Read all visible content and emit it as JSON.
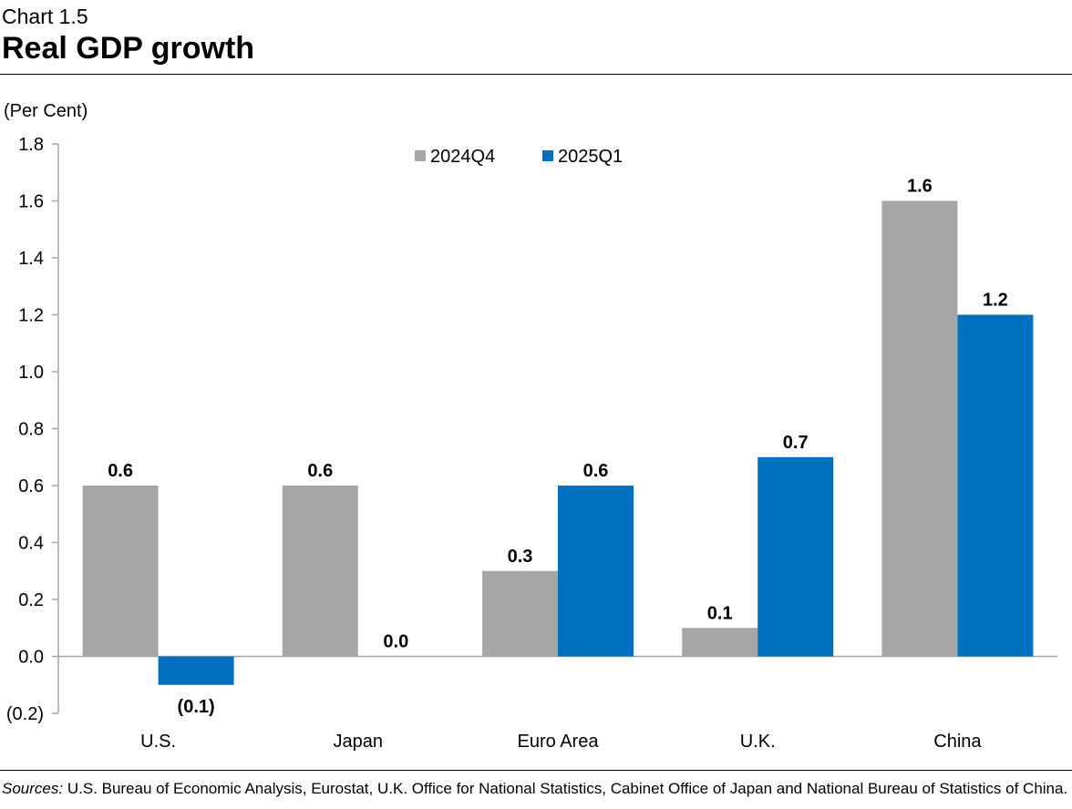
{
  "header": {
    "chart_label": "Chart 1.5",
    "title": "Real GDP growth"
  },
  "footer": {
    "sources_label": "Sources:",
    "sources_text": " U.S. Bureau of Economic Analysis, Eurostat, U.K. Office for National Statistics, Cabinet Office of Japan and National Bureau of Statistics of China."
  },
  "colors": {
    "series_2024Q4": "#a6a6a6",
    "series_2025Q1": "#0070c0",
    "axis": "#a6a6a6"
  },
  "chart_data": {
    "type": "bar",
    "title": "Real GDP growth",
    "ylabel": "(Per Cent)",
    "xlabel": "",
    "ylim": [
      -0.2,
      1.8
    ],
    "yticks": [
      -0.2,
      0.0,
      0.2,
      0.4,
      0.6,
      0.8,
      1.0,
      1.2,
      1.4,
      1.6,
      1.8
    ],
    "ytick_labels": [
      "(0.2)",
      "0.0",
      "0.2",
      "0.4",
      "0.6",
      "0.8",
      "1.0",
      "1.2",
      "1.4",
      "1.6",
      "1.8"
    ],
    "grid": false,
    "legend_position": "top-center",
    "categories": [
      "U.S.",
      "Japan",
      "Euro Area",
      "U.K.",
      "China"
    ],
    "series": [
      {
        "name": "2024Q4",
        "values": [
          0.6,
          0.6,
          0.3,
          0.1,
          1.6
        ],
        "labels": [
          "0.6",
          "0.6",
          "0.3",
          "0.1",
          "1.6"
        ]
      },
      {
        "name": "2025Q1",
        "values": [
          -0.1,
          0.0,
          0.6,
          0.7,
          1.2
        ],
        "labels": [
          "(0.1)",
          "0.0",
          "0.6",
          "0.7",
          "1.2"
        ]
      }
    ]
  }
}
